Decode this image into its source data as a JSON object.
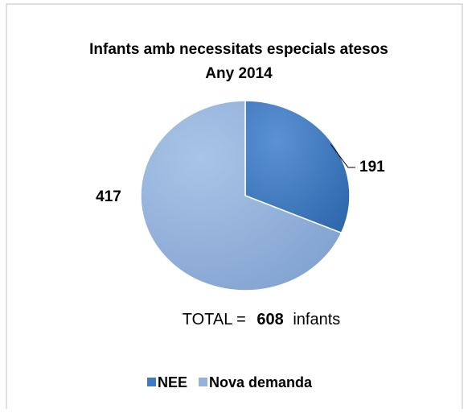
{
  "chart_data": {
    "type": "pie",
    "title": [
      "Infants amb necessitats especials atesos",
      "Any 2014"
    ],
    "categories": [
      "NEE",
      "Nova demanda"
    ],
    "values": [
      191,
      417
    ],
    "colors": [
      "#3f7bc2",
      "#93b3dc"
    ],
    "legend": "bottom",
    "annotation": {
      "prefix": "TOTAL =",
      "value": 608,
      "suffix": "infants"
    }
  }
}
